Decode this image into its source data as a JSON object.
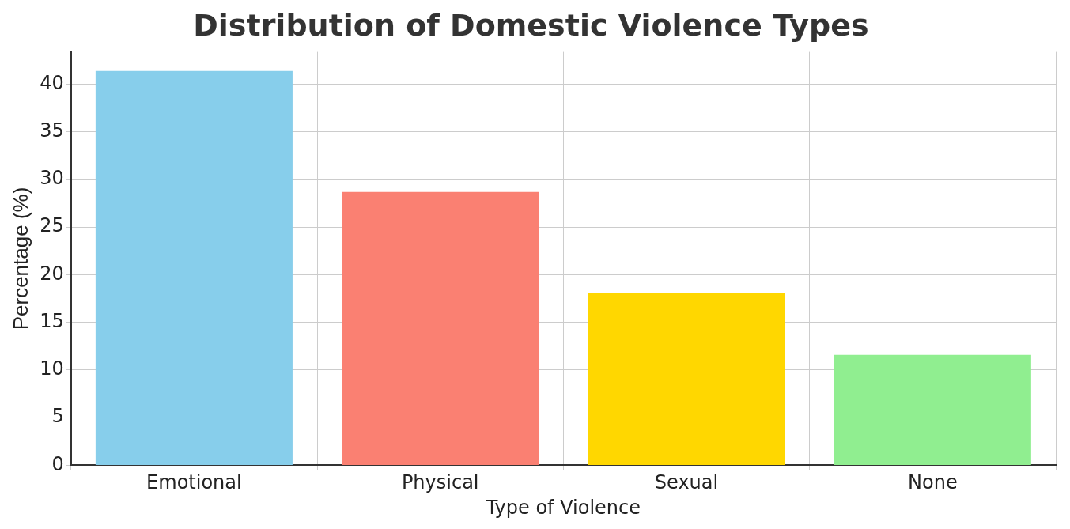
{
  "chart_data": {
    "type": "bar",
    "title": "Distribution of Domestic Violence Types",
    "xlabel": "Type of Violence",
    "ylabel": "Percentage (%)",
    "categories": [
      "Emotional",
      "Physical",
      "Sexual",
      "None"
    ],
    "values": [
      41.4,
      28.7,
      18.1,
      11.6
    ],
    "colors": [
      "#87ceeb",
      "#fa8072",
      "#ffd700",
      "#90ee90"
    ],
    "ylim": [
      0,
      43.4
    ],
    "yticks": [
      0,
      5,
      10,
      15,
      20,
      25,
      30,
      35,
      40
    ],
    "grid": true
  }
}
